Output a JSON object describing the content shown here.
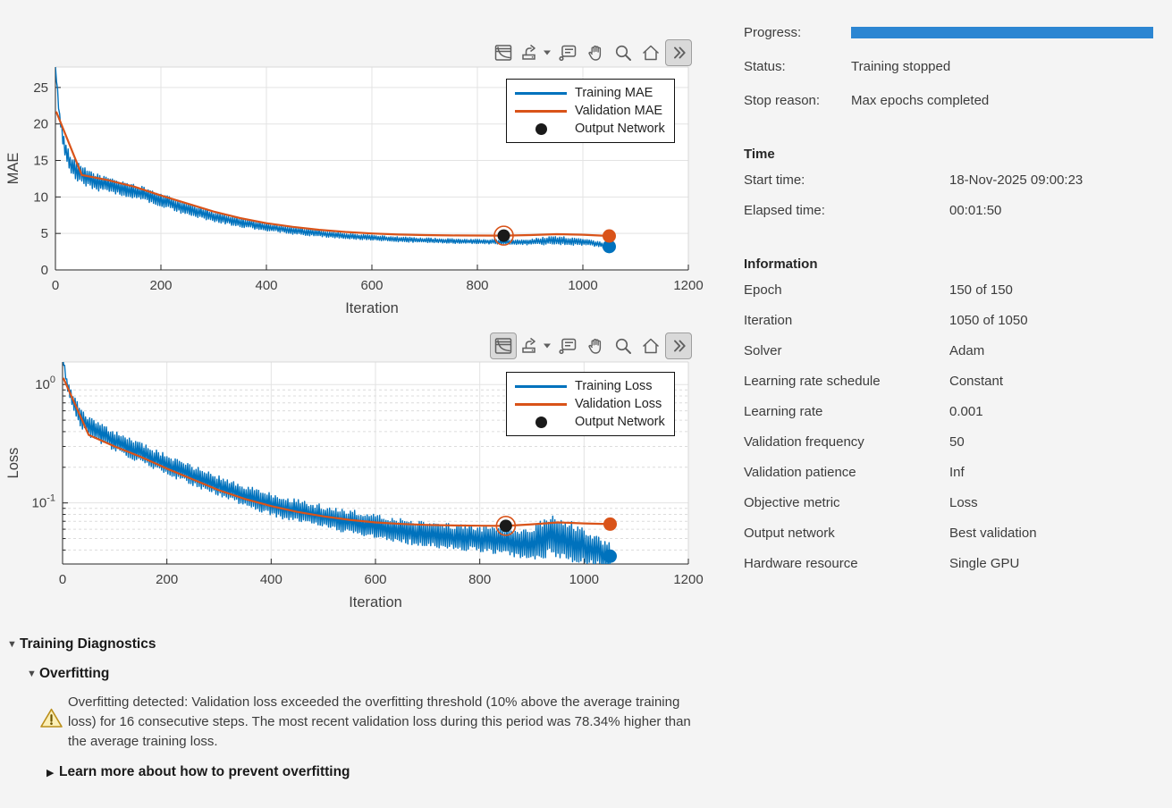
{
  "right_panel": {
    "progress_label": "Progress:",
    "progress_percent": 100,
    "progress_color": "#2C86D2",
    "status_label": "Status:",
    "status_value": "Training stopped",
    "stop_reason_label": "Stop reason:",
    "stop_reason_value": "Max epochs completed",
    "time_heading": "Time",
    "time_rows": [
      {
        "label": "Start time:",
        "value": "18-Nov-2025 09:00:23"
      },
      {
        "label": "Elapsed time:",
        "value": "00:01:50"
      }
    ],
    "info_heading": "Information",
    "info_rows": [
      {
        "label": "Epoch",
        "value": "150 of 150"
      },
      {
        "label": "Iteration",
        "value": "1050 of 1050"
      },
      {
        "label": "Solver",
        "value": "Adam"
      },
      {
        "label": "Learning rate schedule",
        "value": "Constant"
      },
      {
        "label": "Learning rate",
        "value": "0.001"
      },
      {
        "label": "Validation frequency",
        "value": "50"
      },
      {
        "label": "Validation patience",
        "value": "Inf"
      },
      {
        "label": "Objective metric",
        "value": "Loss"
      },
      {
        "label": "Output network",
        "value": "Best validation"
      },
      {
        "label": "Hardware resource",
        "value": "Single GPU"
      }
    ]
  },
  "toolbar": {
    "icons": [
      "log-scale-toggle",
      "export",
      "data-tip",
      "pan",
      "zoom",
      "restore-view",
      "expand"
    ]
  },
  "diagnostics": {
    "title": "Training Diagnostics",
    "subsection": "Overfitting",
    "warning_text": "Overfitting detected: Validation loss exceeded the overfitting threshold (10% above the average training loss) for 16 consecutive steps. The most recent validation loss during this period was 78.34% higher than the average training loss.",
    "learn_more": "Learn more about how to prevent overfitting"
  },
  "chart_data": [
    {
      "id": "mae",
      "type": "line",
      "yscale": "linear",
      "xlabel": "Iteration",
      "ylabel": "MAE",
      "xlim": [
        0,
        1200
      ],
      "xticks": [
        0,
        200,
        400,
        600,
        800,
        1000,
        1200
      ],
      "ylim": [
        0,
        27.8
      ],
      "yticks": [
        0,
        5,
        10,
        15,
        20,
        25
      ],
      "grid": true,
      "legend": [
        {
          "label": "Training MAE",
          "color": "#0072BD",
          "type": "line"
        },
        {
          "label": "Validation MAE",
          "color": "#D95319",
          "type": "line"
        },
        {
          "label": "Output Network",
          "color": "#1a1a1a",
          "type": "marker"
        }
      ],
      "series": {
        "training": {
          "name": "Training MAE",
          "color": "#0072BD",
          "base": [
            [
              0,
              27.8
            ],
            [
              8,
              21
            ],
            [
              18,
              16.5
            ],
            [
              30,
              14.2
            ],
            [
              50,
              13.0
            ],
            [
              80,
              12.0
            ],
            [
              120,
              11.3
            ],
            [
              160,
              10.6
            ],
            [
              200,
              9.6
            ],
            [
              250,
              8.3
            ],
            [
              300,
              7.3
            ],
            [
              350,
              6.5
            ],
            [
              400,
              5.9
            ],
            [
              450,
              5.4
            ],
            [
              500,
              5.0
            ],
            [
              550,
              4.65
            ],
            [
              600,
              4.4
            ],
            [
              650,
              4.2
            ],
            [
              700,
              4.05
            ],
            [
              750,
              3.95
            ],
            [
              800,
              3.9
            ],
            [
              850,
              3.82
            ],
            [
              900,
              3.82
            ],
            [
              940,
              4.05
            ],
            [
              970,
              3.95
            ],
            [
              1000,
              3.8
            ],
            [
              1030,
              3.55
            ],
            [
              1050,
              3.2
            ]
          ],
          "amp": [
            [
              0,
              0.2
            ],
            [
              15,
              1.2
            ],
            [
              40,
              1.3
            ],
            [
              100,
              1.1
            ],
            [
              150,
              0.95
            ],
            [
              200,
              0.9
            ],
            [
              250,
              0.85
            ],
            [
              300,
              0.75
            ],
            [
              350,
              0.65
            ],
            [
              400,
              0.55
            ],
            [
              450,
              0.5
            ],
            [
              500,
              0.45
            ],
            [
              550,
              0.4
            ],
            [
              600,
              0.38
            ],
            [
              650,
              0.35
            ],
            [
              700,
              0.33
            ],
            [
              750,
              0.32
            ],
            [
              800,
              0.3
            ],
            [
              860,
              0.3
            ],
            [
              900,
              0.4
            ],
            [
              930,
              0.55
            ],
            [
              960,
              0.6
            ],
            [
              990,
              0.5
            ],
            [
              1020,
              0.4
            ],
            [
              1050,
              0.32
            ]
          ]
        },
        "validation": {
          "name": "Validation MAE",
          "color": "#D95319",
          "points": [
            [
              2,
              21.6
            ],
            [
              50,
              13.0
            ],
            [
              100,
              12.3
            ],
            [
              150,
              11.4
            ],
            [
              200,
              10.2
            ],
            [
              250,
              9.1
            ],
            [
              300,
              8.0
            ],
            [
              350,
              7.1
            ],
            [
              400,
              6.4
            ],
            [
              450,
              5.9
            ],
            [
              500,
              5.5
            ],
            [
              550,
              5.2
            ],
            [
              600,
              5.0
            ],
            [
              650,
              4.85
            ],
            [
              700,
              4.78
            ],
            [
              750,
              4.73
            ],
            [
              800,
              4.71
            ],
            [
              850,
              4.7
            ],
            [
              900,
              4.78
            ],
            [
              950,
              4.9
            ],
            [
              1000,
              4.82
            ],
            [
              1050,
              4.65
            ]
          ]
        }
      },
      "output_marker": [
        850,
        4.7
      ],
      "end_markers": {
        "validation": [
          1050,
          4.65
        ],
        "training": [
          1050,
          3.2
        ]
      },
      "toolbar_pressed": [
        false,
        false,
        false,
        false,
        false,
        false,
        true
      ]
    },
    {
      "id": "loss",
      "type": "line",
      "yscale": "log",
      "xlabel": "Iteration",
      "ylabel": "Loss",
      "xlim": [
        0,
        1200
      ],
      "xticks": [
        0,
        200,
        400,
        600,
        800,
        1000,
        1200
      ],
      "ylim": [
        0.0305,
        1.55
      ],
      "yticks": [
        1,
        0.1
      ],
      "ytick_labels": [
        [
          "10",
          "0"
        ],
        [
          "10",
          "-1"
        ]
      ],
      "yminor": [
        0.9,
        0.8,
        0.7,
        0.6,
        0.5,
        0.4,
        0.3,
        0.2,
        0.09,
        0.08,
        0.07,
        0.06,
        0.05,
        0.04
      ],
      "grid": true,
      "legend": [
        {
          "label": "Training Loss",
          "color": "#0072BD",
          "type": "line"
        },
        {
          "label": "Validation Loss",
          "color": "#D95319",
          "type": "line"
        },
        {
          "label": "Output Network",
          "color": "#1a1a1a",
          "type": "marker"
        }
      ],
      "series": {
        "training": {
          "name": "Training Loss",
          "color": "#0072BD",
          "base": [
            [
              0,
              1.75
            ],
            [
              8,
              1.05
            ],
            [
              20,
              0.7
            ],
            [
              35,
              0.52
            ],
            [
              50,
              0.44
            ],
            [
              80,
              0.37
            ],
            [
              120,
              0.3
            ],
            [
              160,
              0.255
            ],
            [
              200,
              0.21
            ],
            [
              250,
              0.17
            ],
            [
              300,
              0.138
            ],
            [
              350,
              0.114
            ],
            [
              400,
              0.097
            ],
            [
              450,
              0.085
            ],
            [
              500,
              0.0765
            ],
            [
              550,
              0.0695
            ],
            [
              600,
              0.0635
            ],
            [
              650,
              0.0585
            ],
            [
              700,
              0.0545
            ],
            [
              750,
              0.0515
            ],
            [
              800,
              0.049
            ],
            [
              850,
              0.047
            ],
            [
              900,
              0.0455
            ],
            [
              935,
              0.053
            ],
            [
              965,
              0.049
            ],
            [
              1000,
              0.042
            ],
            [
              1030,
              0.038
            ],
            [
              1050,
              0.0355
            ]
          ],
          "amp": [
            [
              0,
              0.02
            ],
            [
              20,
              0.08
            ],
            [
              60,
              0.085
            ],
            [
              150,
              0.085
            ],
            [
              300,
              0.09
            ],
            [
              450,
              0.1
            ],
            [
              600,
              0.105
            ],
            [
              750,
              0.11
            ],
            [
              850,
              0.115
            ],
            [
              900,
              0.14
            ],
            [
              935,
              0.18
            ],
            [
              965,
              0.19
            ],
            [
              995,
              0.16
            ],
            [
              1025,
              0.13
            ],
            [
              1050,
              0.12
            ]
          ]
        },
        "validation": {
          "name": "Validation Loss",
          "color": "#D95319",
          "points": [
            [
              2,
              1.12
            ],
            [
              50,
              0.375
            ],
            [
              100,
              0.3
            ],
            [
              150,
              0.245
            ],
            [
              200,
              0.195
            ],
            [
              250,
              0.158
            ],
            [
              300,
              0.128
            ],
            [
              350,
              0.108
            ],
            [
              400,
              0.094
            ],
            [
              450,
              0.084
            ],
            [
              500,
              0.077
            ],
            [
              550,
              0.072
            ],
            [
              600,
              0.0685
            ],
            [
              650,
              0.0665
            ],
            [
              700,
              0.0652
            ],
            [
              750,
              0.0645
            ],
            [
              800,
              0.0642
            ],
            [
              850,
              0.064
            ],
            [
              900,
              0.066
            ],
            [
              950,
              0.0685
            ],
            [
              1000,
              0.0672
            ],
            [
              1050,
              0.0662
            ]
          ]
        }
      },
      "output_marker": [
        850,
        0.064
      ],
      "end_markers": {
        "validation": [
          1050,
          0.0662
        ],
        "training": [
          1050,
          0.0355
        ]
      },
      "toolbar_pressed": [
        true,
        false,
        false,
        false,
        false,
        false,
        true
      ]
    }
  ]
}
